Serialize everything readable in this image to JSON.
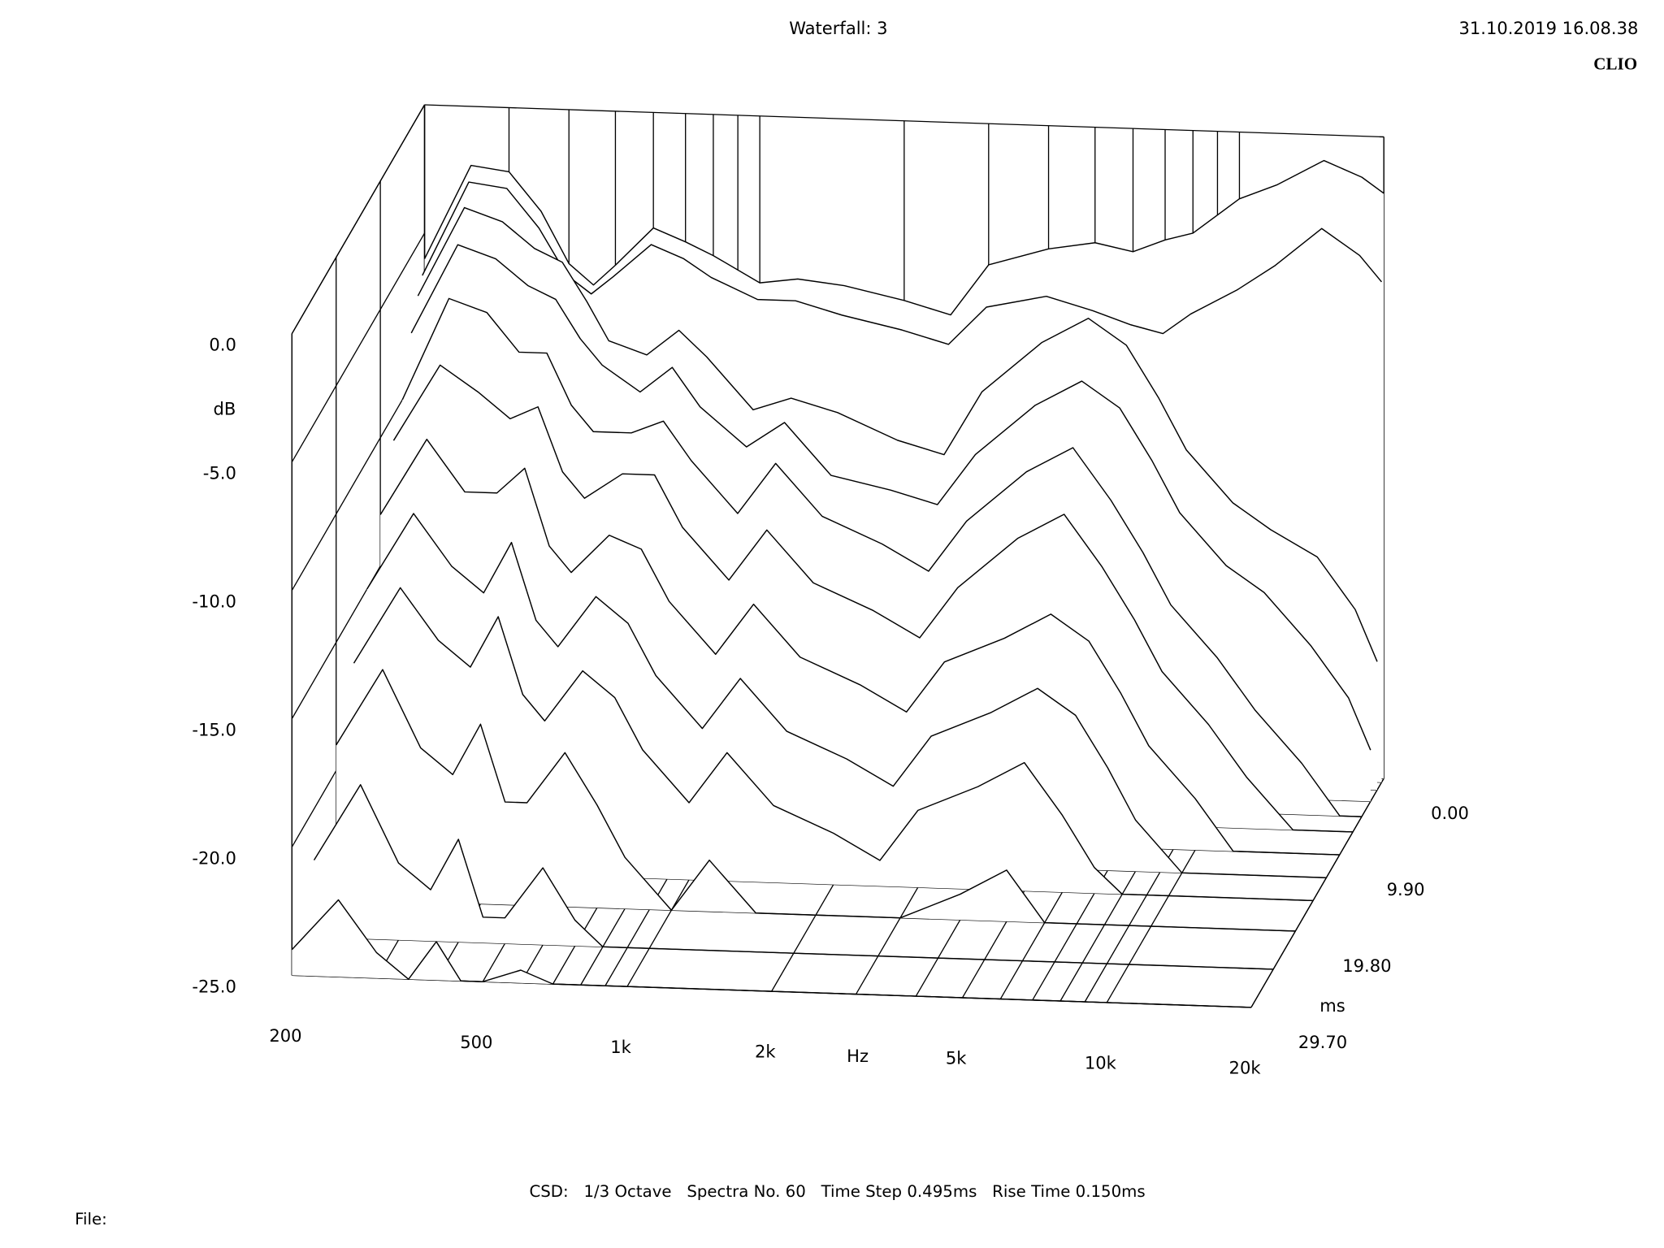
{
  "header": {
    "title": "Waterfall: 3",
    "timestamp": "31.10.2019 16.08.38",
    "brand": "CLIO"
  },
  "chart_data": {
    "type": "waterfall",
    "x": [
      200,
      250,
      300,
      350,
      400,
      450,
      500,
      600,
      700,
      800,
      1000,
      1200,
      1500,
      2000,
      2500,
      3000,
      4000,
      5000,
      6000,
      7000,
      8000,
      10000,
      12000,
      15000,
      18000,
      20000
    ],
    "z": [
      0,
      0.495,
      1.485,
      2.97,
      4.95,
      6.93,
      9.9,
      12.87,
      15.84,
      19.8,
      24.75,
      29.7
    ],
    "series": [
      {
        "values": [
          -6,
          -2.3,
          -2.5,
          -4,
          -6,
          -6.8,
          -6,
          -4.5,
          -5,
          -5.5,
          -6.5,
          -6.3,
          -6.5,
          -7,
          -7.5,
          -5.5,
          -4.8,
          -4.5,
          -4.8,
          -4.3,
          -4,
          -2.6,
          -2,
          -1,
          -1.6,
          -2.2
        ]
      },
      {
        "values": [
          -6.5,
          -2.8,
          -3,
          -4.5,
          -6.3,
          -7,
          -6.3,
          -5,
          -5.5,
          -6.2,
          -7,
          -7,
          -7.5,
          -8,
          -8.5,
          -7,
          -6.5,
          -7,
          -7.5,
          -7.8,
          -7,
          -6,
          -5,
          -3.5,
          -4.5,
          -5.5
        ]
      },
      {
        "values": [
          -7,
          -3.5,
          -4,
          -5,
          -5.5,
          -7,
          -8.5,
          -9,
          -8,
          -9,
          -11,
          -10.5,
          -11,
          -12,
          -12.5,
          -10,
          -8,
          -7,
          -8,
          -10,
          -12,
          -14,
          -15,
          -16,
          -18,
          -20
        ]
      },
      {
        "values": [
          -8,
          -4.5,
          -5,
          -6,
          -6.5,
          -8,
          -9,
          -10,
          -9,
          -10.5,
          -12,
          -11,
          -13,
          -13.5,
          -14,
          -12,
          -10,
          -9,
          -10,
          -12,
          -14,
          -16,
          -17,
          -19,
          -21,
          -23
        ]
      },
      {
        "values": [
          -10,
          -6,
          -6.5,
          -8,
          -8,
          -10,
          -11,
          -11,
          -10.5,
          -12,
          -14,
          -12,
          -14,
          -15,
          -16,
          -14,
          -12,
          -11,
          -13,
          -15,
          -17,
          -19,
          -21,
          -23,
          -25,
          -25
        ]
      },
      {
        "values": [
          -11,
          -8,
          -9,
          -10,
          -9.5,
          -12,
          -13,
          -12,
          -12,
          -14,
          -16,
          -14,
          -16,
          -17,
          -18,
          -16,
          -14,
          -13,
          -15,
          -17,
          -19,
          -21,
          -23,
          -25,
          -25,
          -25
        ]
      },
      {
        "values": [
          -13,
          -10,
          -12,
          -12,
          -11,
          -14,
          -15,
          -13.5,
          -14,
          -16,
          -18,
          -16,
          -18,
          -19,
          -20,
          -18,
          -17,
          -16,
          -17,
          -19,
          -21,
          -23,
          -25,
          -25,
          -25,
          -25
        ]
      },
      {
        "values": [
          -15,
          -12,
          -14,
          -15,
          -13,
          -16,
          -17,
          -15,
          -16,
          -18,
          -20,
          -18,
          -20,
          -21,
          -22,
          -20,
          -19,
          -18,
          -19,
          -21,
          -23,
          -25,
          -25,
          -25,
          -25,
          -25
        ]
      },
      {
        "values": [
          -17,
          -14,
          -16,
          -17,
          -15,
          -18,
          -19,
          -17,
          -18,
          -20,
          -22,
          -20,
          -22,
          -23,
          -24,
          -22,
          -21,
          -20,
          -22,
          -24,
          -25,
          -25,
          -25,
          -25,
          -25,
          -25
        ]
      },
      {
        "values": [
          -19,
          -16,
          -19,
          -20,
          -18,
          -21,
          -21,
          -19,
          -21,
          -23,
          -25,
          -23,
          -25,
          -25,
          -25,
          -25,
          -24,
          -23,
          -25,
          -25,
          -25,
          -25,
          -25,
          -25,
          -25,
          -25
        ]
      },
      {
        "values": [
          -22,
          -19,
          -22,
          -23,
          -21,
          -24,
          -24,
          -22,
          -24,
          -25,
          -25,
          -25,
          -25,
          -25,
          -25,
          -25,
          -25,
          -25,
          -25,
          -25,
          -25,
          -25,
          -25,
          -25,
          -25,
          -25
        ]
      },
      {
        "values": [
          -24,
          -22,
          -24,
          -25,
          -23.5,
          -25,
          -25,
          -24.5,
          -25,
          -25,
          -25,
          -25,
          -25,
          -25,
          -25,
          -25,
          -25,
          -25,
          -25,
          -25,
          -25,
          -25,
          -25,
          -25,
          -25,
          -25
        ]
      }
    ],
    "xlabel": "Hz",
    "ylabel": "dB",
    "zlabel": "ms",
    "xlim": [
      200,
      20000
    ],
    "log_x": true,
    "xticks": [
      200,
      500,
      {
        "value": 1000,
        "label": "1k"
      },
      {
        "value": 2000,
        "label": "2k"
      },
      {
        "value": 5000,
        "label": "5k"
      },
      {
        "value": 10000,
        "label": "10k"
      },
      {
        "value": 20000,
        "label": "20k"
      }
    ],
    "xgrid": [
      300,
      400,
      600,
      700,
      800,
      900,
      3000,
      4000,
      6000,
      7000,
      8000,
      9000
    ],
    "ylim": [
      -25,
      0
    ],
    "yticks": [
      {
        "value": 0,
        "label": "0.0"
      },
      {
        "value": -5,
        "label": "-5.0"
      },
      {
        "value": -10,
        "label": "-10.0"
      },
      {
        "value": -15,
        "label": "-15.0"
      },
      {
        "value": -20,
        "label": "-20.0"
      },
      {
        "value": -25,
        "label": "-25.0"
      }
    ],
    "zlim": [
      0,
      29.7
    ],
    "zticks": [
      {
        "value": 0,
        "label": "0.00"
      },
      {
        "value": 9.9,
        "label": "9.90"
      },
      {
        "value": 19.8,
        "label": "19.80"
      },
      {
        "value": 29.7,
        "label": "29.70"
      }
    ]
  },
  "footer": {
    "settings": "CSD:   1/3 Octave   Spectra No. 60   Time Step 0.495ms   Rise Time 0.150ms",
    "file": "File:"
  }
}
